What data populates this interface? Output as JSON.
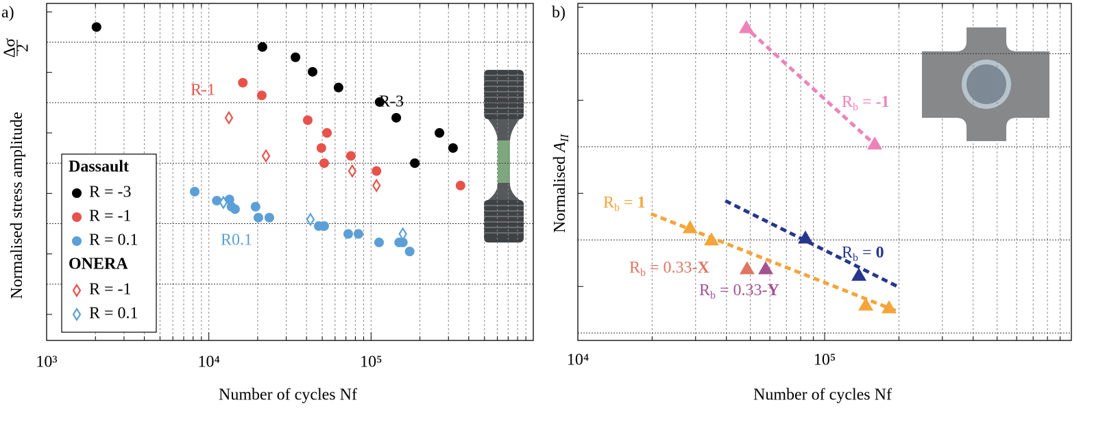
{
  "chart_data": [
    {
      "type": "scatter",
      "panel_label": "a)",
      "xlabel": "Number of cycles Nf",
      "ylabel": "Normalised stress amplitude",
      "ylabel_fraction": {
        "numerator": "Δσ",
        "denominator": "2"
      },
      "xscale": "log",
      "xlim": [
        1000,
        1000000
      ],
      "xticks": [
        {
          "value": 1000,
          "label": "10³"
        },
        {
          "value": 10000,
          "label": "10⁴"
        },
        {
          "value": 100000,
          "label": "10⁵"
        }
      ],
      "xminorticks": [
        2000,
        3000,
        4000,
        5000,
        6000,
        7000,
        8000,
        9000,
        20000,
        30000,
        40000,
        50000,
        60000,
        70000,
        80000,
        90000,
        200000,
        300000,
        400000,
        500000,
        600000,
        700000,
        800000,
        900000
      ],
      "ylim": [
        0.07,
        5.64
      ],
      "yticks": [
        1,
        2,
        3,
        4,
        5
      ],
      "yminorticks": [
        0.5,
        1.5,
        2.5,
        3.5,
        4.5,
        5.5
      ],
      "grid": true,
      "legend_position": "lower left",
      "legend_groups": [
        "Dassault",
        "ONERA"
      ],
      "series": [
        {
          "name": "R = -3",
          "group": 0,
          "marker": "circle",
          "color": "#000000",
          "x": [
            2030,
            21400,
            34200,
            43600,
            63000,
            113000,
            143000,
            264000,
            320000,
            186000
          ],
          "values": [
            5.25,
            4.92,
            4.75,
            4.51,
            4.25,
            4.01,
            3.75,
            3.5,
            3.25,
            3.0
          ]
        },
        {
          "name": "R = -1",
          "group": 0,
          "marker": "circle",
          "color": "#e8524a",
          "x": [
            16200,
            21200,
            40700,
            53500,
            49400,
            51400,
            75100,
            108000,
            356000
          ],
          "values": [
            4.33,
            4.12,
            3.71,
            3.5,
            3.25,
            3.0,
            3.12,
            2.87,
            2.63
          ]
        },
        {
          "name": "R = 0.1",
          "group": 0,
          "marker": "circle",
          "color": "#5b9fd6",
          "x": [
            8180,
            11200,
            13400,
            13800,
            14500,
            19400,
            20200,
            23600,
            47600,
            51400,
            72300,
            83600,
            112000,
            149000,
            157000,
            173000
          ],
          "values": [
            2.53,
            2.38,
            2.4,
            2.28,
            2.24,
            2.28,
            2.1,
            2.1,
            1.96,
            1.96,
            1.83,
            1.83,
            1.69,
            1.69,
            1.69,
            1.54
          ]
        },
        {
          "name": "R = -1",
          "group": 1,
          "marker": "diamond",
          "color": "#e8524a",
          "x": [
            13300,
            22500,
            76600,
            108000
          ],
          "values": [
            3.75,
            3.12,
            2.87,
            2.63
          ]
        },
        {
          "name": "R = 0.1",
          "group": 1,
          "marker": "diamond",
          "color": "#5b9fd6",
          "x": [
            12300,
            42300,
            157000
          ],
          "values": [
            2.35,
            2.07,
            1.83
          ]
        }
      ],
      "annotations": [
        {
          "text": "R-3",
          "color": "#000000"
        },
        {
          "text": "R-1",
          "color": "#e8524a"
        },
        {
          "text": "R0.1",
          "color": "#5b9fd6"
        }
      ]
    },
    {
      "type": "scatter",
      "panel_label": "b)",
      "xlabel": "Number of cycles Nf",
      "ylabel": "Normalised ",
      "ylabel_symbol": "A",
      "ylabel_subscript": "II",
      "xscale": "log",
      "xlim": [
        10000,
        1000000
      ],
      "xticks": [
        {
          "value": 10000,
          "label": "10⁴"
        },
        {
          "value": 100000,
          "label": "10⁵"
        }
      ],
      "xminorticks": [
        20000,
        30000,
        40000,
        50000,
        60000,
        70000,
        80000,
        90000,
        200000,
        300000,
        400000,
        500000,
        600000,
        700000,
        800000,
        900000
      ],
      "ylim": [
        0.92,
        4.54
      ],
      "yticks": [
        1,
        2,
        3,
        4
      ],
      "yminorticks": [
        1.5,
        2.5,
        3.5,
        4.5
      ],
      "grid": true,
      "series": [
        {
          "marker": "triangle",
          "color": "#ee83b9",
          "x": [
            48200,
            159600
          ],
          "values": [
            4.28,
            3.03
          ],
          "fit_x": [
            47000,
            162000
          ],
          "fit_y": [
            4.3,
            3.01
          ],
          "label": {
            "symbol": "R",
            "subscript": "b",
            "relation": " = ",
            "emphasis": "-1"
          }
        },
        {
          "marker": "triangle",
          "color": "#f5a43a",
          "x": [
            28500,
            34800,
            146800,
            182400
          ],
          "values": [
            2.13,
            2.0,
            1.3,
            1.27
          ],
          "fit_x": [
            19800,
            198300
          ],
          "fit_y": [
            2.28,
            1.23
          ],
          "label": {
            "symbol": "R",
            "subscript": "b",
            "relation": " = ",
            "emphasis": "1"
          }
        },
        {
          "marker": "triangle",
          "color": "#27378e",
          "x": [
            83600,
            137700
          ],
          "values": [
            2.02,
            1.62
          ],
          "fit_x": [
            39600,
            200800
          ],
          "fit_y": [
            2.42,
            1.49
          ],
          "label": {
            "symbol": "R",
            "subscript": "b",
            "relation": " = ",
            "emphasis": "0"
          }
        },
        {
          "marker": "triangle",
          "color": "#e07563",
          "x": [
            48500
          ],
          "values": [
            1.69
          ],
          "label": {
            "symbol": "R",
            "subscript": "b",
            "relation": " = 0.33-",
            "emphasis": "X"
          }
        },
        {
          "marker": "triangle",
          "color": "#a3548e",
          "x": [
            57700
          ],
          "values": [
            1.69
          ],
          "label": {
            "symbol": "R",
            "subscript": "b",
            "relation": " = 0.33-",
            "emphasis": "Y"
          }
        }
      ]
    }
  ]
}
